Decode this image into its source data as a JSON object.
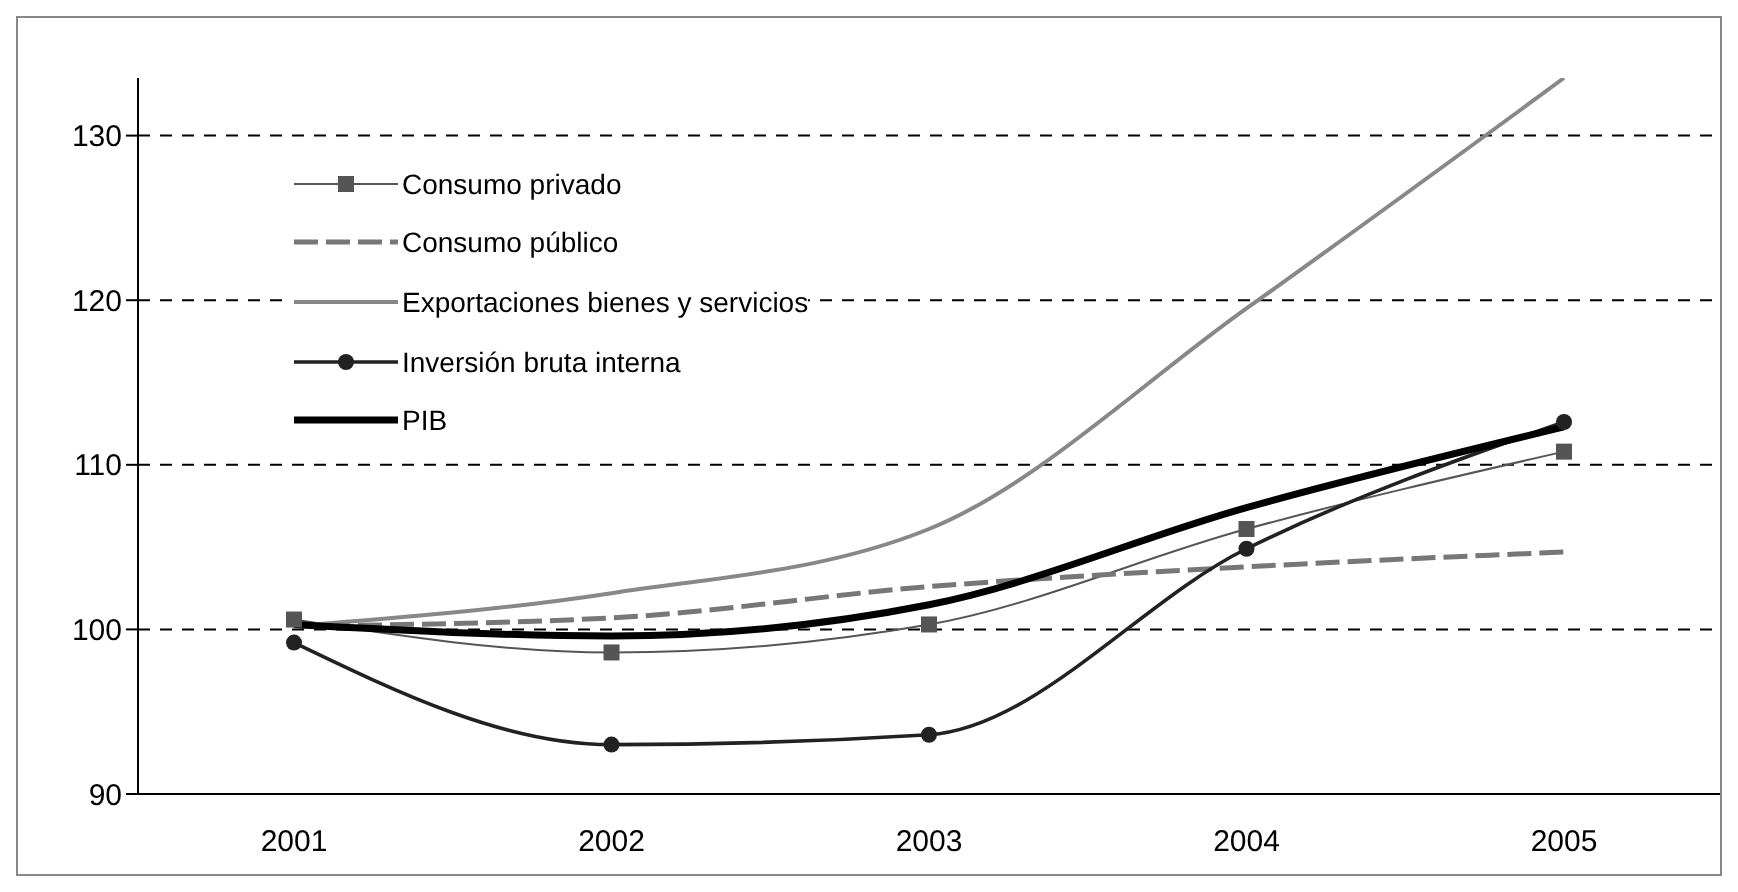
{
  "chart_data": {
    "type": "line",
    "categories": [
      "2001",
      "2002",
      "2003",
      "2004",
      "2005"
    ],
    "series": [
      {
        "name": "Consumo privado",
        "color": "#555555",
        "marker": "square",
        "line_style": "solid",
        "values": [
          100.6,
          98.6,
          100.3,
          106.1,
          110.8
        ]
      },
      {
        "name": "Consumo público",
        "color": "#777777",
        "marker": "none",
        "line_style": "dashed",
        "values": [
          100.2,
          100.7,
          102.6,
          103.8,
          104.7
        ]
      },
      {
        "name": "Exportaciones bienes y servicios",
        "color": "#888888",
        "marker": "none",
        "line_style": "solid",
        "values": [
          100.2,
          102.2,
          106.1,
          119.5,
          133.5
        ]
      },
      {
        "name": "Inversión bruta interna",
        "color": "#222222",
        "marker": "circle",
        "line_style": "solid",
        "values": [
          99.2,
          93.0,
          93.6,
          104.9,
          112.6
        ]
      },
      {
        "name": "PIB",
        "color": "#000000",
        "marker": "none",
        "line_style": "solid",
        "values": [
          100.3,
          99.6,
          101.5,
          107.4,
          112.3
        ]
      }
    ],
    "ylim": [
      90,
      133.5
    ],
    "yticks": [
      90,
      100,
      110,
      120,
      130
    ],
    "grid": "y",
    "legend": "top left"
  }
}
